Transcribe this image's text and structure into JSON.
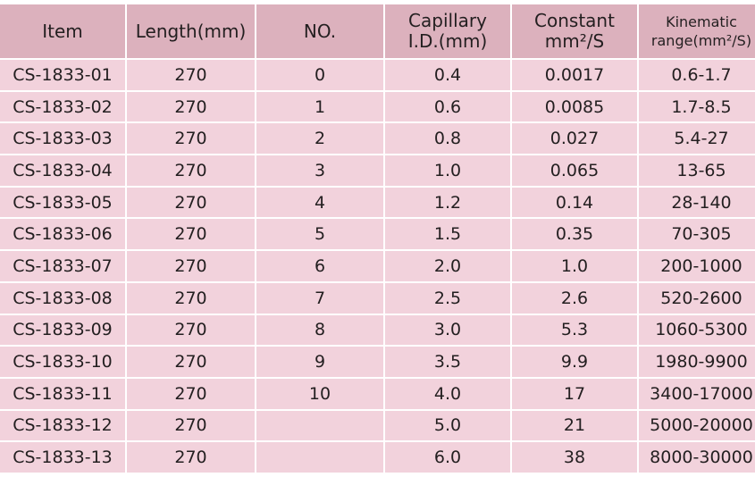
{
  "table": {
    "header": [
      [
        "Item"
      ],
      [
        "Length(mm)"
      ],
      [
        "NO."
      ],
      [
        "Capillary",
        "I.D.(mm)"
      ],
      [
        "Constant",
        "mm²/S"
      ],
      [
        "Kinematic",
        "range(mm²/S)"
      ]
    ],
    "rows": [
      [
        "CS-1833-01",
        "270",
        "0",
        "0.4",
        "0.0017",
        "0.6-1.7"
      ],
      [
        "CS-1833-02",
        "270",
        "1",
        "0.6",
        "0.0085",
        "1.7-8.5"
      ],
      [
        "CS-1833-03",
        "270",
        "2",
        "0.8",
        "0.027",
        "5.4-27"
      ],
      [
        "CS-1833-04",
        "270",
        "3",
        "1.0",
        "0.065",
        "13-65"
      ],
      [
        "CS-1833-05",
        "270",
        "4",
        "1.2",
        "0.14",
        "28-140"
      ],
      [
        "CS-1833-06",
        "270",
        "5",
        "1.5",
        "0.35",
        "70-305"
      ],
      [
        "CS-1833-07",
        "270",
        "6",
        "2.0",
        "1.0",
        "200-1000"
      ],
      [
        "CS-1833-08",
        "270",
        "7",
        "2.5",
        "2.6",
        "520-2600"
      ],
      [
        "CS-1833-09",
        "270",
        "8",
        "3.0",
        "5.3",
        "1060-5300"
      ],
      [
        "CS-1833-10",
        "270",
        "9",
        "3.5",
        "9.9",
        "1980-9900"
      ],
      [
        "CS-1833-11",
        "270",
        "10",
        "4.0",
        "17",
        "3400-17000"
      ],
      [
        "CS-1833-12",
        "270",
        null,
        "5.0",
        "21",
        "5000-20000"
      ],
      [
        "CS-1833-13",
        "270",
        null,
        "6.0",
        "38",
        "8000-30000"
      ]
    ]
  }
}
